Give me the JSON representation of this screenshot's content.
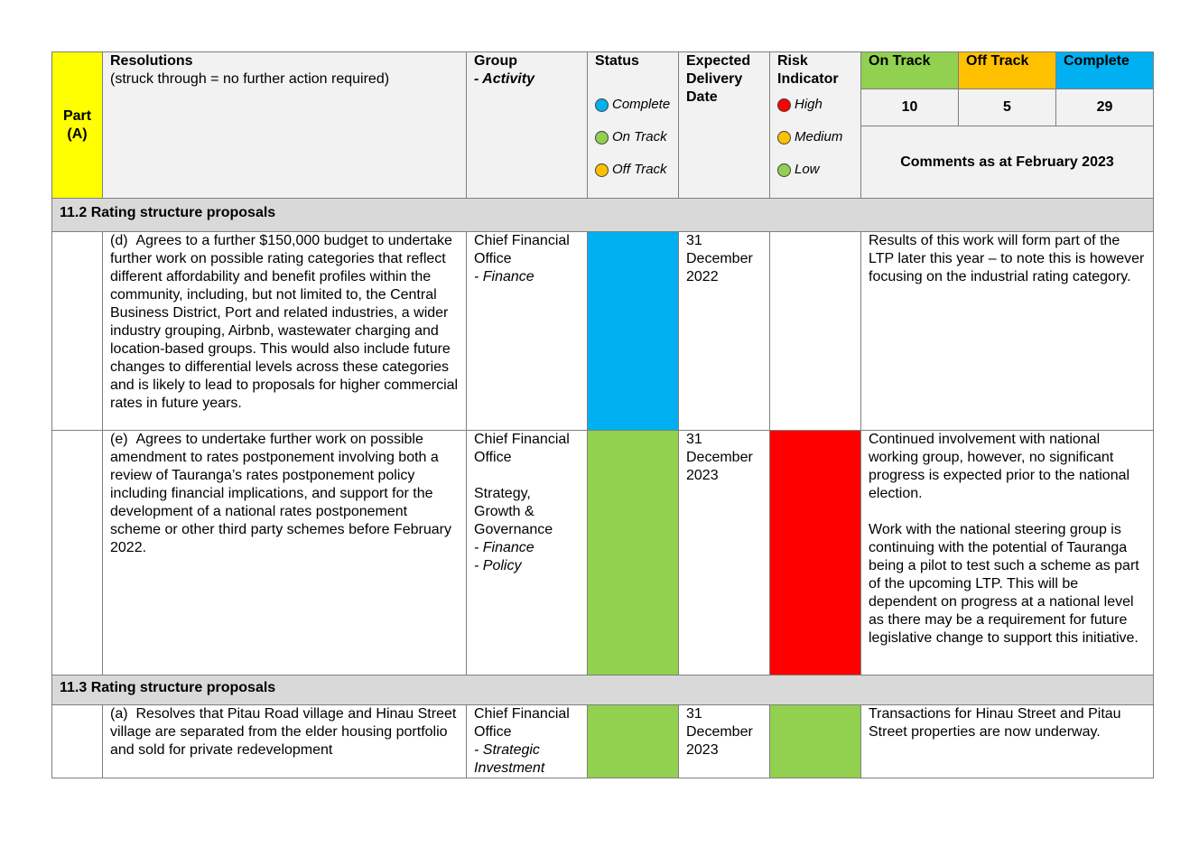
{
  "header": {
    "part": "Part (A)",
    "resolutions_title": "Resolutions",
    "resolutions_sub": "(struck through = no further action required)",
    "group_title": "Group",
    "group_sub": "- Activity",
    "status_title": "Status",
    "status_legend": [
      {
        "label": "Complete",
        "color": "#00b0f0"
      },
      {
        "label": "On Track",
        "color": "#92d050"
      },
      {
        "label": "Off Track",
        "color": "#ffc000"
      }
    ],
    "delivery_title": "Expected Delivery Date",
    "risk_title": "Risk Indicator",
    "risk_legend": [
      {
        "label": "High",
        "color": "#ff0000"
      },
      {
        "label": "Medium",
        "color": "#ffc000"
      },
      {
        "label": "Low",
        "color": "#92d050"
      }
    ],
    "summary": [
      {
        "label": "On Track",
        "count": "10",
        "color": "#92d050"
      },
      {
        "label": "Off Track",
        "count": "5",
        "color": "#ffc000"
      },
      {
        "label": "Complete",
        "count": "29",
        "color": "#00b0f0"
      }
    ],
    "comments_title": "Comments as at February 2023"
  },
  "sections": [
    {
      "title": "11.2 Rating structure proposals",
      "rows": [
        {
          "resolution": "(d)  Agrees to a further $150,000 budget to undertake further work on possible rating categories that reflect different affordability and benefit profiles within the community, including, but not limited to, the Central Business District, Port and related industries, a wider industry grouping, Airbnb, wastewater charging and location-based groups.  This would also include future changes to differential levels across these categories and is likely to lead to proposals for higher commercial rates in future years.",
          "group": "Chief Financial Office",
          "activity": "- Finance",
          "status_color": "#00b0f0",
          "delivery": "31 December 2022",
          "risk_color": "#ffffff",
          "comments": "Results of this work will form part of the LTP later this year – to note this is however focusing on the industrial rating category."
        },
        {
          "resolution": "(e)  Agrees to undertake further work on possible amendment to rates postponement involving both a review of Tauranga’s rates postponement policy including financial implications, and support for the development of a national rates postponement scheme or other third party schemes before February 2022.",
          "group": "Chief Financial Office",
          "group2": "Strategy, Growth & Governance",
          "activity": "- Finance",
          "activity2": "- Policy",
          "status_color": "#92d050",
          "delivery": "31 December 2023",
          "risk_color": "#ff0000",
          "comments": "Continued involvement with national working group, however, no significant progress is expected prior to the national election.",
          "comments2": "Work with the national steering group is continuing with the potential of Tauranga being a pilot to test such a scheme as part of the upcoming LTP. This will be dependent on progress at a national level as there may be a requirement for future legislative change to support this initiative."
        }
      ]
    },
    {
      "title": "11.3 Rating structure proposals",
      "rows": [
        {
          "resolution": "(a)  Resolves that Pitau Road village and Hinau Street village are separated from the elder housing portfolio and sold for private redevelopment",
          "group": "Chief Financial Office",
          "activity": "- Strategic Investment",
          "status_color": "#92d050",
          "delivery": "31 December 2023",
          "risk_color": "#92d050",
          "comments": "Transactions for Hinau Street and Pitau Street properties are now underway."
        }
      ]
    }
  ]
}
